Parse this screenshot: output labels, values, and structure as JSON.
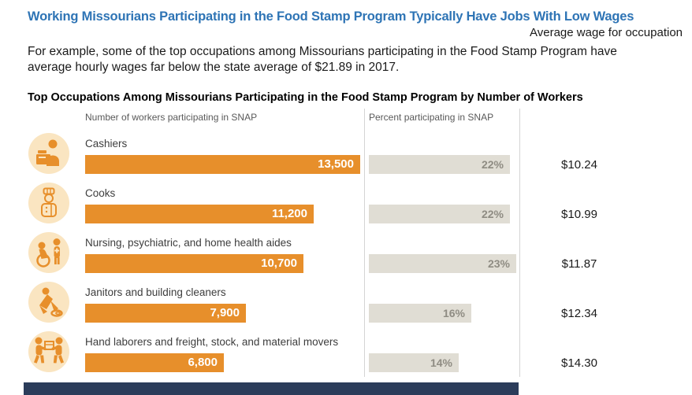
{
  "page": {
    "title": "Working Missourians Participating in the Food Stamp Program Typically Have Jobs With Low Wages",
    "intro": "For example, some of the top occupations among Missourians participating in the Food Stamp Program have average hourly wages far below the state average of $21.89 in 2017.",
    "chart_title": "Top Occupations Among Missourians Participating in the Food Stamp Program by Number of Workers"
  },
  "columns": {
    "workers_header": "Number of workers participating in SNAP",
    "percent_header": "Percent participating in SNAP",
    "wage_header": "Average wage for occupation"
  },
  "rows": [
    {
      "icon": "cashier-icon",
      "label": "Cashiers",
      "workers_label": "13,500",
      "workers_value": 13500,
      "percent_label": "22%",
      "percent_value": 22,
      "wage": "$10.24"
    },
    {
      "icon": "cook-icon",
      "label": "Cooks",
      "workers_label": "11,200",
      "workers_value": 11200,
      "percent_label": "22%",
      "percent_value": 22,
      "wage": "$10.99"
    },
    {
      "icon": "nurse-wheelchair-icon",
      "label": "Nursing, psychiatric, and home health aides",
      "workers_label": "10,700",
      "workers_value": 10700,
      "percent_label": "23%",
      "percent_value": 23,
      "wage": "$11.87"
    },
    {
      "icon": "janitor-icon",
      "label": "Janitors and building cleaners",
      "workers_label": "7,900",
      "workers_value": 7900,
      "percent_label": "16%",
      "percent_value": 16,
      "wage": "$12.34"
    },
    {
      "icon": "movers-icon",
      "label": "Hand laborers and freight, stock, and material movers",
      "workers_label": "6,800",
      "workers_value": 6800,
      "percent_label": "14%",
      "percent_value": 14,
      "wage": "$14.30"
    }
  ],
  "chart_data": {
    "type": "bar",
    "orientation": "horizontal",
    "title": "Top Occupations Among Missourians Participating in the Food Stamp Program by Number of Workers",
    "categories": [
      "Cashiers",
      "Cooks",
      "Nursing, psychiatric, and home health aides",
      "Janitors and building cleaners",
      "Hand laborers and freight, stock, and material movers"
    ],
    "series": [
      {
        "name": "Number of workers participating in SNAP",
        "values": [
          13500,
          11200,
          10700,
          7900,
          6800
        ],
        "value_labels": [
          "13,500",
          "11,200",
          "10,700",
          "7,900",
          "6,800"
        ],
        "axis_max": 13500,
        "color": "#E78F2B",
        "label_position": "inside-end"
      },
      {
        "name": "Percent participating in SNAP",
        "values": [
          22,
          22,
          23,
          16,
          14
        ],
        "value_labels": [
          "22%",
          "22%",
          "23%",
          "16%",
          "14%"
        ],
        "axis_max": 23.5,
        "color": "#E0DDD4",
        "label_position": "inside-end"
      }
    ],
    "extra_column": {
      "name": "Average wage for occupation",
      "values": [
        "$10.24",
        "$10.99",
        "$11.87",
        "$12.34",
        "$14.30"
      ]
    },
    "annotations": {
      "state_average_wage": "$21.89",
      "year": "2017"
    },
    "legend": "none",
    "grid": "off"
  },
  "colors": {
    "title_blue": "#2E74B5",
    "bar_orange": "#E78F2B",
    "icon_background": "#FAE5C1",
    "percent_bar_gray": "#E0DDD4",
    "percent_text_gray": "#8F8C83",
    "divider_gray": "#D4D4D4",
    "footer_navy": "#2B3C5A"
  }
}
